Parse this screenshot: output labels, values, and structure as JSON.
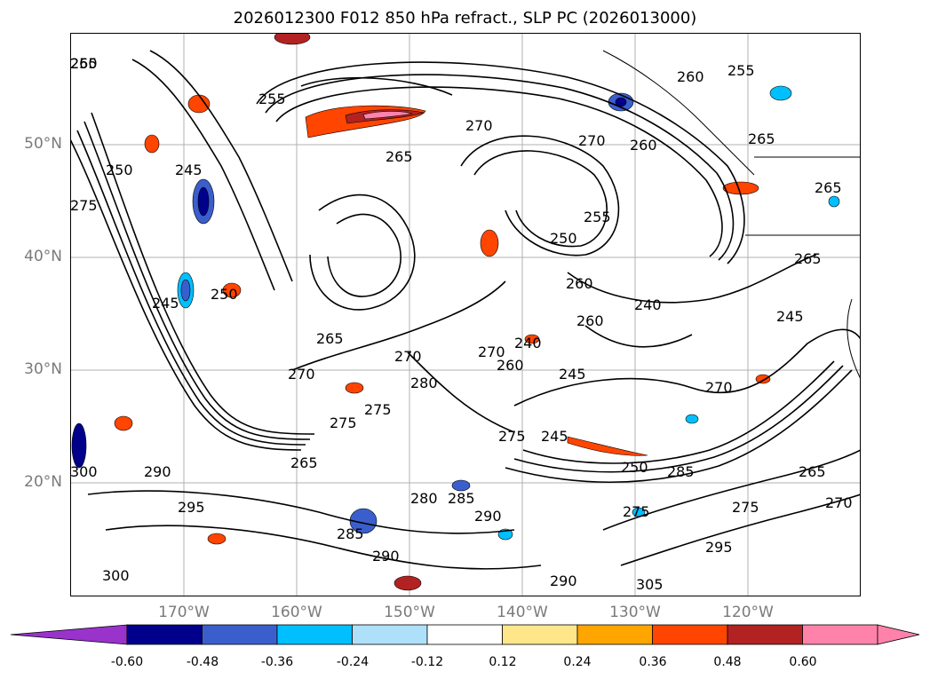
{
  "title": "2026012300 F012 850 hPa refract., SLP PC (2026013000)",
  "lat_labels": [
    "50°N",
    "40°N",
    "30°N",
    "20°N"
  ],
  "lon_labels": [
    "170°W",
    "160°W",
    "150°W",
    "140°W",
    "130°W",
    "120°W"
  ],
  "contour_labels": [
    "260",
    "255",
    "255",
    "260",
    "255",
    "270",
    "250",
    "245",
    "265",
    "270",
    "260",
    "265",
    "265",
    "255",
    "250",
    "260",
    "275",
    "245",
    "250",
    "265",
    "270",
    "270",
    "240",
    "240",
    "245",
    "270",
    "280",
    "275",
    "275",
    "270",
    "260",
    "275",
    "245",
    "250",
    "285",
    "265",
    "290",
    "295",
    "280",
    "285",
    "290",
    "275",
    "300",
    "290",
    "305",
    "295",
    "270",
    "265",
    "275",
    "285",
    "290",
    "300",
    "245",
    "265",
    "260"
  ],
  "colorbar": {
    "ticks": [
      "-0.60",
      "-0.48",
      "-0.36",
      "-0.24",
      "-0.12",
      "0.12",
      "0.24",
      "0.36",
      "0.48",
      "0.60"
    ],
    "colors": {
      "under": "#9933cc",
      "bins": [
        "#00008b",
        "#3a5fcd",
        "#00bfff",
        "#afe0fa",
        "#ffffff",
        "#ffe68a",
        "#ffa500",
        "#ff4500",
        "#b22222",
        "#ff82ab"
      ],
      "over": "#ff82ab"
    }
  }
}
